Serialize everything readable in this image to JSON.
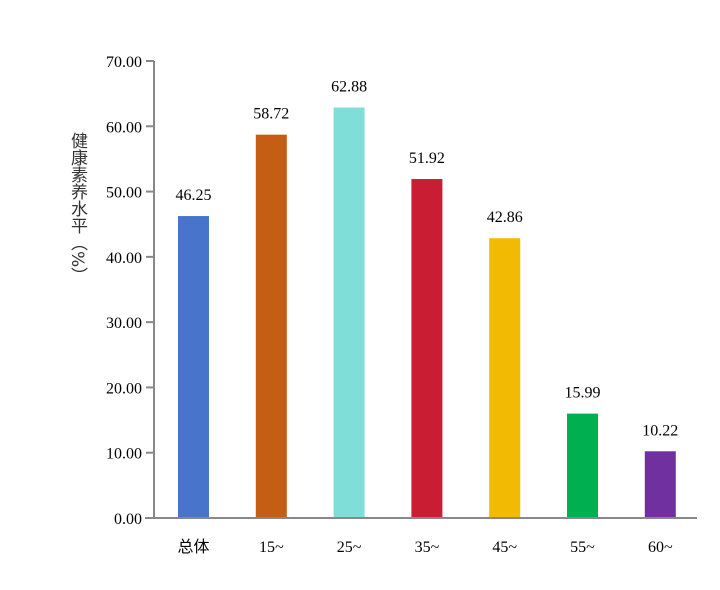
{
  "chart_data": {
    "type": "bar",
    "title": "",
    "xlabel": "",
    "ylabel": "健康素养水平（%）",
    "categories": [
      "总体",
      "15~",
      "25~",
      "35~",
      "45~",
      "55~",
      "60~"
    ],
    "values": [
      46.25,
      58.72,
      62.88,
      51.92,
      42.86,
      15.99,
      10.22
    ],
    "value_labels": [
      "46.25",
      "58.72",
      "62.88",
      "51.92",
      "42.86",
      "15.99",
      "10.22"
    ],
    "colors": [
      "#4874CB",
      "#C55E14",
      "#7FDED8",
      "#C91D33",
      "#F2BA02",
      "#00AF50",
      "#7030A0"
    ],
    "ylim": [
      0,
      70
    ],
    "yticks": [
      "0.00",
      "10.00",
      "20.00",
      "30.00",
      "40.00",
      "50.00",
      "60.00",
      "70.00"
    ],
    "grid": false,
    "legend": "none"
  }
}
